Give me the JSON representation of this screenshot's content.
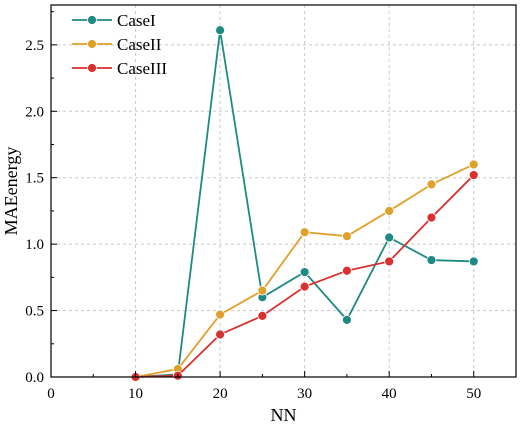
{
  "chart_data": {
    "type": "line",
    "xlabel": "NN",
    "ylabel": "MAEenergy",
    "xlim": [
      0,
      55
    ],
    "ylim": [
      0,
      2.8
    ],
    "xticks": [
      0,
      10,
      20,
      30,
      40,
      50
    ],
    "yticks": [
      0.0,
      0.5,
      1.0,
      1.5,
      2.0,
      2.5
    ],
    "xtick_labels": [
      "0",
      "10",
      "20",
      "30",
      "40",
      "50"
    ],
    "ytick_labels": [
      "0.0",
      "0.5",
      "1.0",
      "1.5",
      "2.0",
      "2.5"
    ],
    "grid": true,
    "legend_position": "top-left",
    "x": [
      10,
      15,
      20,
      25,
      30,
      35,
      40,
      45,
      50
    ],
    "series": [
      {
        "name": "CaseI",
        "color": "#1f8a84",
        "values": [
          0.0,
          0.02,
          2.61,
          0.6,
          0.79,
          0.43,
          1.05,
          0.88,
          0.87
        ]
      },
      {
        "name": "CaseII",
        "color": "#e0a12a",
        "values": [
          0.0,
          0.06,
          0.47,
          0.65,
          1.09,
          1.06,
          1.25,
          1.45,
          1.6
        ]
      },
      {
        "name": "CaseIII",
        "color": "#d9312f",
        "values": [
          0.0,
          0.01,
          0.32,
          0.46,
          0.68,
          0.8,
          0.87,
          1.2,
          1.52
        ]
      }
    ]
  }
}
